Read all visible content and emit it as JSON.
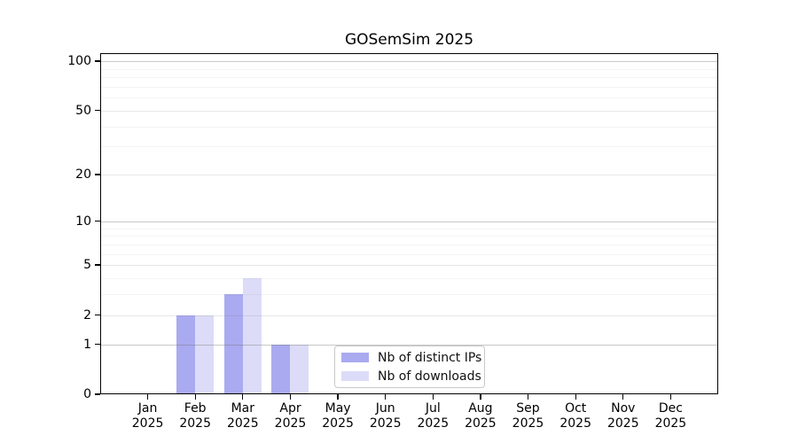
{
  "chart_data": {
    "type": "bar",
    "title": "GOSemSim 2025",
    "categories": [
      "Jan",
      "Feb",
      "Mar",
      "Apr",
      "May",
      "Jun",
      "Jul",
      "Aug",
      "Sep",
      "Oct",
      "Nov",
      "Dec"
    ],
    "x_year": "2025",
    "series": [
      {
        "name": "Nb of distinct IPs",
        "color": "#aaaaf0",
        "values": [
          0,
          2,
          3,
          1,
          0,
          0,
          0,
          0,
          0,
          0,
          0,
          0
        ]
      },
      {
        "name": "Nb of downloads",
        "color": "#dcdcf8",
        "values": [
          0,
          2,
          4,
          1,
          0,
          0,
          0,
          0,
          0,
          0,
          0,
          0
        ]
      }
    ],
    "yscale": "log1p",
    "ylim": [
      0,
      112
    ],
    "yticks": [
      0,
      1,
      2,
      5,
      10,
      20,
      50,
      100
    ],
    "minor_yticks": [
      3,
      4,
      6,
      7,
      8,
      9,
      30,
      40,
      60,
      70,
      80,
      90
    ],
    "grid": "horizontal",
    "legend_position": "inside-bottom-center",
    "xlabel": "",
    "ylabel": ""
  },
  "colors": {
    "spine": "#000000",
    "grid_decade": "#c9c9c9",
    "grid_major": "#ebebeb",
    "grid_minor": "#f3f3f3",
    "legend_border": "#c9c9c9",
    "background": "#ffffff"
  }
}
